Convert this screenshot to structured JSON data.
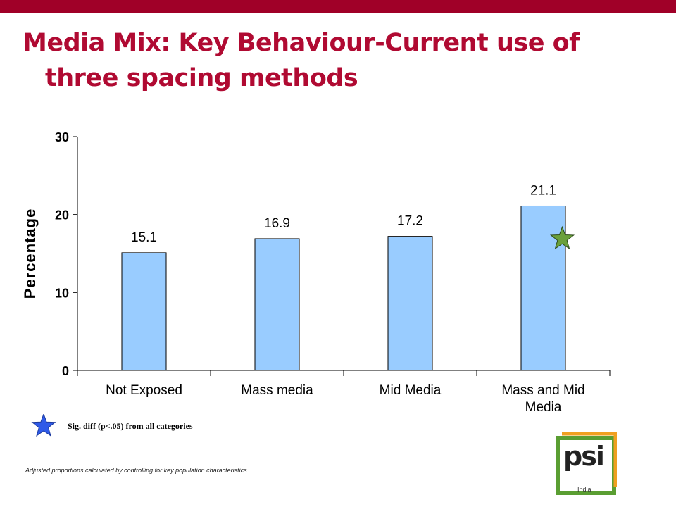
{
  "header": {
    "title_line1": "Media Mix: Key Behaviour-Current use of",
    "title_line2": "three spacing methods"
  },
  "chart_data": {
    "type": "bar",
    "categories": [
      [
        "Not Exposed"
      ],
      [
        "Mass media"
      ],
      [
        "Mid Media"
      ],
      [
        "Mass and Mid",
        "Media"
      ]
    ],
    "values": [
      15.1,
      16.9,
      17.2,
      21.1
    ],
    "value_labels": [
      "15.1",
      "16.9",
      "17.2",
      "21.1"
    ],
    "ylabel": "Percentage",
    "xlabel": "",
    "ylim": [
      0,
      30
    ],
    "yticks": [
      0,
      10,
      20,
      30
    ],
    "grid": false,
    "bar_color": "#99ccff",
    "significant_category_index": 3,
    "significance_marker_color": "#6aa03c"
  },
  "legend": {
    "marker": "star-icon",
    "marker_color": "#2f5ae8",
    "text": "Sig. diff (p<.05) from all categories"
  },
  "footnote": "Adjusted proportions calculated by controlling for key population characteristics",
  "logo": {
    "text": "psi",
    "subtext": "India",
    "colors": {
      "green": "#5a9e32",
      "orange": "#f0a020"
    }
  }
}
